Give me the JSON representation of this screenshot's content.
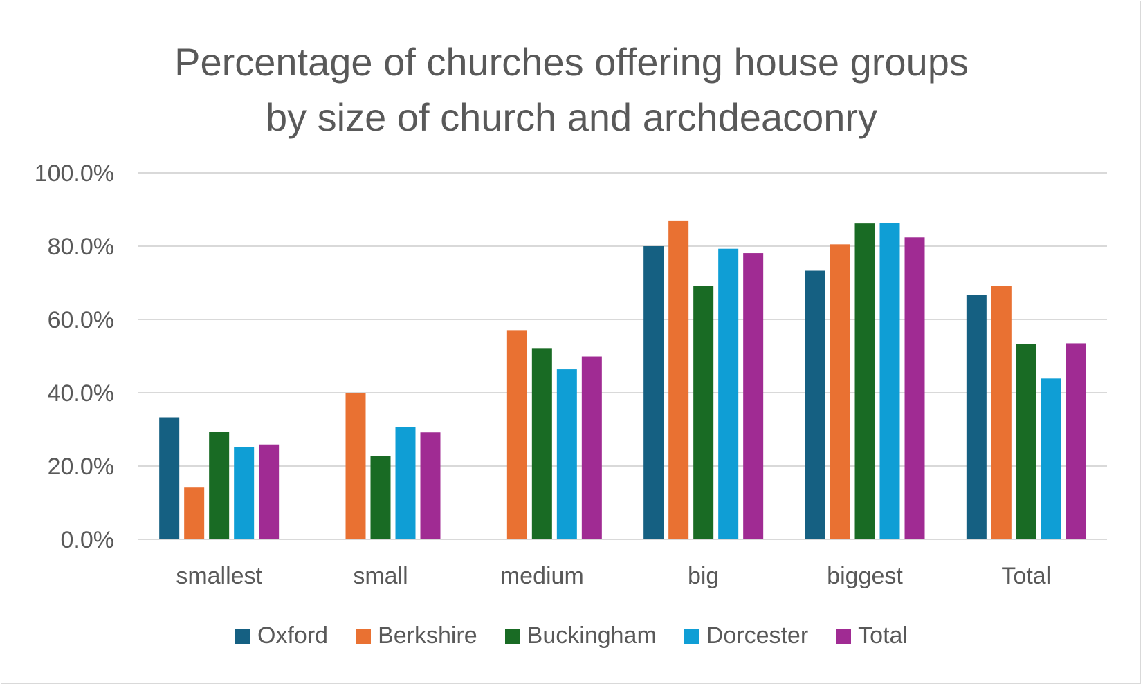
{
  "chart_data": {
    "type": "bar",
    "title_lines": [
      "Percentage of churches offering house groups",
      "by size of church and archdeaconry"
    ],
    "categories": [
      "smallest",
      "small",
      "medium",
      "big",
      "biggest",
      "Total"
    ],
    "series": [
      {
        "name": "Oxford",
        "color": "#156082",
        "values": [
          33.3,
          null,
          null,
          80.0,
          73.3,
          66.7
        ]
      },
      {
        "name": "Berkshire",
        "color": "#E97132",
        "values": [
          14.3,
          40.0,
          57.1,
          87.0,
          80.5,
          69.1
        ]
      },
      {
        "name": "Buckingham",
        "color": "#196B24",
        "values": [
          29.4,
          22.7,
          52.2,
          69.2,
          86.2,
          53.3
        ]
      },
      {
        "name": "Dorcester",
        "color": "#0F9ED5",
        "values": [
          25.2,
          30.6,
          46.4,
          79.3,
          86.3,
          43.9
        ]
      },
      {
        "name": "Total",
        "color": "#A02B93",
        "values": [
          25.9,
          29.2,
          49.9,
          78.1,
          82.4,
          53.5
        ]
      }
    ],
    "y_ticks": [
      "0.0%",
      "20.0%",
      "40.0%",
      "60.0%",
      "80.0%",
      "100.0%"
    ],
    "ylim": [
      0,
      100
    ],
    "grid": true,
    "legend_position": "bottom"
  }
}
